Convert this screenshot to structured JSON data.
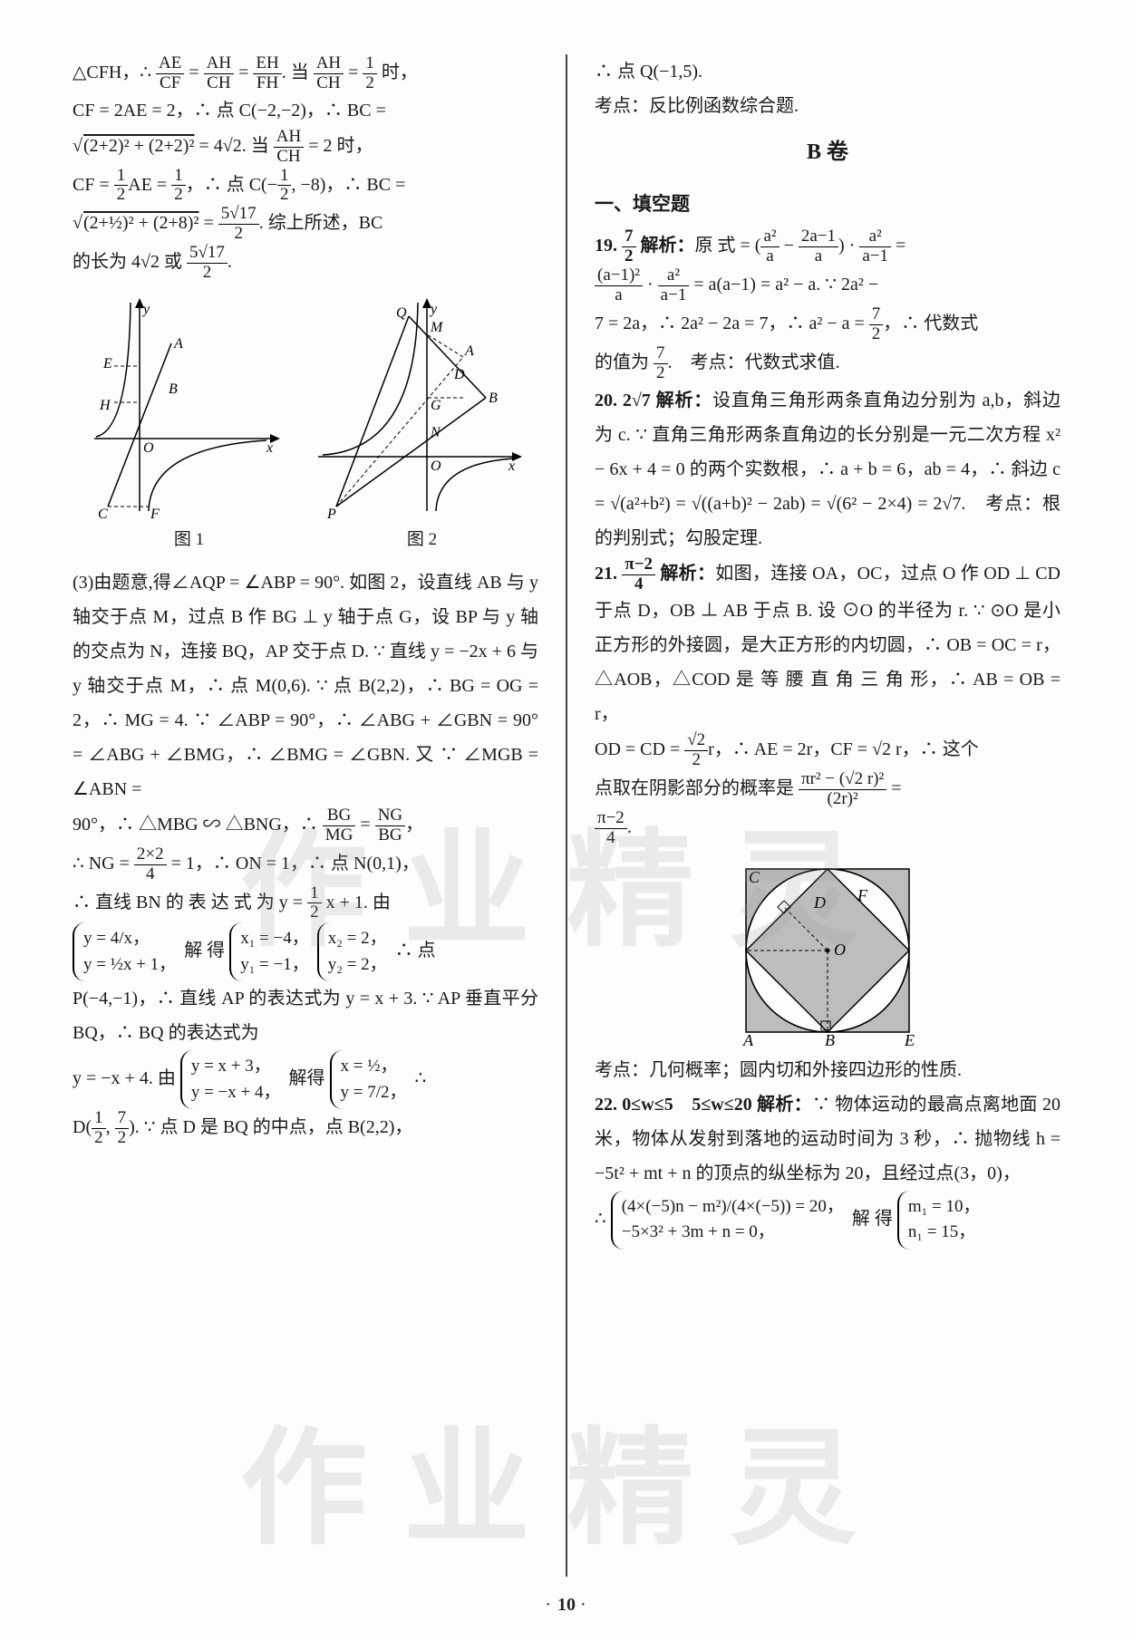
{
  "page_number": "10",
  "watermark_text": "作业精灵",
  "left_column": {
    "para1_parts": [
      "△CFH，∴ ",
      {
        "frac": [
          "AE",
          "CF"
        ]
      },
      " = ",
      {
        "frac": [
          "AH",
          "CH"
        ]
      },
      " = ",
      {
        "frac": [
          "EH",
          "FH"
        ]
      },
      ". 当 ",
      {
        "frac": [
          "AH",
          "CH"
        ]
      },
      " = ",
      {
        "frac": [
          "1",
          "2"
        ]
      },
      " 时，"
    ],
    "para2": "CF = 2AE = 2，∴ 点 C(−2,−2)，∴ BC =",
    "para3_parts": [
      "√",
      {
        "over": "(2+2)² + (2+2)²"
      },
      " = 4√2.  当 ",
      {
        "frac": [
          "AH",
          "CH"
        ]
      },
      " = 2 时，"
    ],
    "para4_parts": [
      "CF = ",
      {
        "frac": [
          "1",
          "2"
        ]
      },
      "AE = ",
      {
        "frac": [
          "1",
          "2"
        ]
      },
      "，∴ 点 C(−",
      {
        "frac": [
          "1",
          "2"
        ]
      },
      ", −8)，∴ BC ="
    ],
    "para5_parts": [
      "√",
      {
        "over": "(2+½)² + (2+8)²"
      },
      " = ",
      {
        "frac": [
          "5√17",
          "2"
        ]
      },
      ". 综上所述，BC"
    ],
    "para6_parts": [
      "的长为 4√2 或 ",
      {
        "frac": [
          "5√17",
          "2"
        ]
      },
      "."
    ],
    "fig1_label": "图 1",
    "fig2_label": "图 2",
    "fig1_labels": {
      "y": "y",
      "x": "x",
      "A": "A",
      "B": "B",
      "E": "E",
      "H": "H",
      "O": "O",
      "C": "C",
      "F": "F"
    },
    "fig2_labels": {
      "y": "y",
      "x": "x",
      "Q": "Q",
      "M": "M",
      "A": "A",
      "D": "D",
      "B": "B",
      "G": "G",
      "N": "N",
      "O": "O",
      "P": "P"
    },
    "para7": "(3)由题意,得∠AQP = ∠ABP = 90°. 如图 2，设直线 AB 与 y 轴交于点 M，过点 B 作 BG ⊥ y 轴于点 G，设 BP 与 y 轴的交点为 N，连接 BQ，AP 交于点 D. ∵ 直线 y = −2x + 6 与 y 轴交于点 M，∴ 点 M(0,6). ∵ 点 B(2,2)，∴ BG = OG = 2，∴ MG = 4. ∵ ∠ABP = 90°，∴ ∠ABG + ∠GBN = 90° = ∠ABG + ∠BMG，∴ ∠BMG = ∠GBN. 又 ∵ ∠MGB = ∠ABN =",
    "para8_parts": [
      "90°，∴ △MBG ∽ △BNG，∴ ",
      {
        "frac": [
          "BG",
          "MG"
        ]
      },
      " = ",
      {
        "frac": [
          "NG",
          "BG"
        ]
      },
      "，"
    ],
    "para9_parts": [
      "∴ NG = ",
      {
        "frac": [
          "2×2",
          "4"
        ]
      },
      " = 1，∴ ON = 1，∴ 点 N(0,1)，"
    ],
    "para10_parts": [
      "∴ 直线 BN 的 表 达 式 为 y = ",
      {
        "frac": [
          "1",
          "2"
        ]
      },
      " x + 1. 由"
    ],
    "sys1_lines": [
      "y = 4/x，",
      "y = ½x + 1，"
    ],
    "sys2_lines": [
      "x₁ = −4，",
      "y₁ = −1，"
    ],
    "sys3_lines": [
      "x₂ = 2，",
      "y₂ = 2，"
    ],
    "sys_mid1": "解 得",
    "sys_mid2": "∴ 点",
    "para11": "P(−4,−1)，∴ 直线 AP 的表达式为 y = x + 3. ∵ AP 垂直平分 BQ，∴ BQ 的表达式为",
    "para12_pre": "y = −x + 4. 由",
    "sys4_lines": [
      "y = x + 3，",
      "y = −x + 4，"
    ],
    "para12_mid": "解得",
    "sys5_lines": [
      "x = ½，",
      "y = 7/2，"
    ],
    "para12_post": "∴",
    "para13_parts": [
      "D(",
      {
        "frac": [
          "1",
          "2"
        ]
      },
      ", ",
      {
        "frac": [
          "7",
          "2"
        ]
      },
      "). ∵ 点 D 是 BQ 的中点，点 B(2,2)，"
    ]
  },
  "right_column": {
    "para1": "∴ 点 Q(−1,5).",
    "para2": "考点：反比例函数综合题.",
    "section_b": "B  卷",
    "sub1": "一、填空题",
    "q19_ans": "19. ",
    "q19_frac": {
      "frac": [
        "7",
        "2"
      ]
    },
    "q19_label": "  解析：",
    "q19_parts": [
      "原 式 = (",
      {
        "frac": [
          "a²",
          "a"
        ]
      },
      " − ",
      {
        "frac": [
          "2a−1",
          "a"
        ]
      },
      ") · ",
      {
        "frac": [
          "a²",
          "a−1"
        ]
      },
      " ="
    ],
    "q19_line2_parts": [
      {
        "frac": [
          "(a−1)²",
          "a"
        ]
      },
      " · ",
      {
        "frac": [
          "a²",
          "a−1"
        ]
      },
      " = a(a−1) = a² − a. ∵ 2a² −"
    ],
    "q19_line3_parts": [
      "7 = 2a，∴ 2a² − 2a = 7，∴ a² − a = ",
      {
        "frac": [
          "7",
          "2"
        ]
      },
      "，∴ 代数式"
    ],
    "q19_line4_parts": [
      "的值为 ",
      {
        "frac": [
          "7",
          "2"
        ]
      },
      ".　考点：代数式求值."
    ],
    "q20_ans": "20. 2√7  解析：",
    "q20_body": "设直角三角形两条直角边分别为 a,b，斜边为 c. ∵ 直角三角形两条直角边的长分别是一元二次方程 x² − 6x + 4 = 0 的两个实数根，∴ a + b = 6，ab = 4，∴ 斜边 c = √(a²+b²) = √((a+b)² − 2ab) = √(6² − 2×4) = 2√7.　考点：根的判别式；勾股定理.",
    "q21_ans": "21. ",
    "q21_frac": {
      "frac": [
        "π−2",
        "4"
      ]
    },
    "q21_label": "  解析：",
    "q21_body1": "如图，连接 OA，OC，过点 O 作 OD ⊥ CD 于点 D，OB ⊥ AB 于点 B. 设 ⊙O 的半径为 r. ∵ ⊙O 是小正方形的外接圆，是大正方形的内切圆，∴ OB = OC = r，△AOB，△COD 是 等 腰 直 角 三 角 形，∴ AB = OB = r，",
    "q21_line2_parts": [
      "OD = CD = ",
      {
        "frac": [
          "√2",
          "2"
        ]
      },
      "r，∴ AE = 2r，CF = √2 r，∴ 这个"
    ],
    "q21_line3_parts": [
      "点取在阴影部分的概率是 ",
      {
        "frac": [
          "πr² − (√2 r)²",
          "(2r)²"
        ]
      },
      " ="
    ],
    "q21_line4_parts": [
      {
        "frac": [
          "π−2",
          "4"
        ]
      },
      "."
    ],
    "fig3_labels": {
      "C": "C",
      "D": "D",
      "F": "F",
      "O": "O",
      "A": "A",
      "B": "B",
      "E": "E"
    },
    "q21_foot": "考点：几何概率；圆内切和外接四边形的性质.",
    "q22_ans": "22. 0≤w≤5　5≤w≤20  解析：",
    "q22_body": "∵ 物体运动的最高点离地面 20 米，物体从发射到落地的运动时间为 3 秒，∴ 抛物线 h = −5t² + mt + n 的顶点的纵坐标为 20，且经过点(3，0)，",
    "q22_sys1_lines": [
      "(4×(−5)n − m²)/(4×(−5)) = 20，",
      "−5×3² + 3m + n = 0，"
    ],
    "q22_mid": "∴",
    "q22_mid2": "解 得",
    "q22_sys2_lines": [
      "m₁ = 10，",
      "n₁ = 15，"
    ]
  },
  "colors": {
    "text": "#1a1a1a",
    "divider": "#444444",
    "curve": "#000000",
    "dashed": "#333333",
    "shade": "#bdbdbd",
    "bg": "#fdfdfb"
  }
}
